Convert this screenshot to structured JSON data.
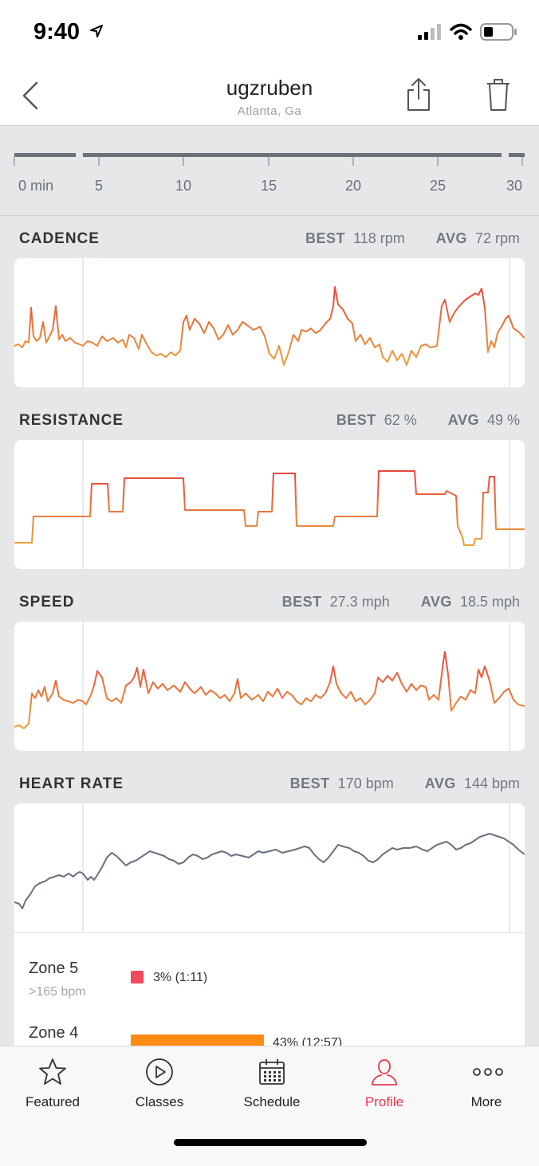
{
  "status": {
    "time": "9:40"
  },
  "header": {
    "title": "ugzruben",
    "subtitle": "Atlanta, Ga"
  },
  "timeline": {
    "ticks": [
      "0 min",
      "5",
      "10",
      "15",
      "20",
      "25",
      "30"
    ]
  },
  "metrics": {
    "cadence": {
      "title": "CADENCE",
      "best_label": "BEST",
      "best_value": "118 rpm",
      "avg_label": "AVG",
      "avg_value": "72 rpm"
    },
    "resistance": {
      "title": "RESISTANCE",
      "best_label": "BEST",
      "best_value": "62 %",
      "avg_label": "AVG",
      "avg_value": "49 %"
    },
    "speed": {
      "title": "SPEED",
      "best_label": "BEST",
      "best_value": "27.3 mph",
      "avg_label": "AVG",
      "avg_value": "18.5 mph"
    },
    "heart_rate": {
      "title": "HEART RATE",
      "best_label": "BEST",
      "best_value": "170 bpm",
      "avg_label": "AVG",
      "avg_value": "144 bpm"
    }
  },
  "zones": [
    {
      "name": "Zone 5",
      "range": ">165 bpm",
      "percent": 3,
      "value": "3% (1:11)",
      "color": "#f04a5e"
    },
    {
      "name": "Zone 4",
      "range": "",
      "percent": 43,
      "value": "43% (12:57)",
      "color": "#ff8a14"
    }
  ],
  "tabs": [
    {
      "label": "Featured",
      "icon": "star-icon"
    },
    {
      "label": "Classes",
      "icon": "play-circle-icon"
    },
    {
      "label": "Schedule",
      "icon": "calendar-icon"
    },
    {
      "label": "Profile",
      "icon": "person-icon",
      "active": true
    },
    {
      "label": "More",
      "icon": "more-dots-icon"
    }
  ],
  "colors": {
    "accent": "#e8384f",
    "chart_low": "#e9a43c",
    "chart_high": "#e8413e",
    "heart_line": "#6b7080"
  }
}
